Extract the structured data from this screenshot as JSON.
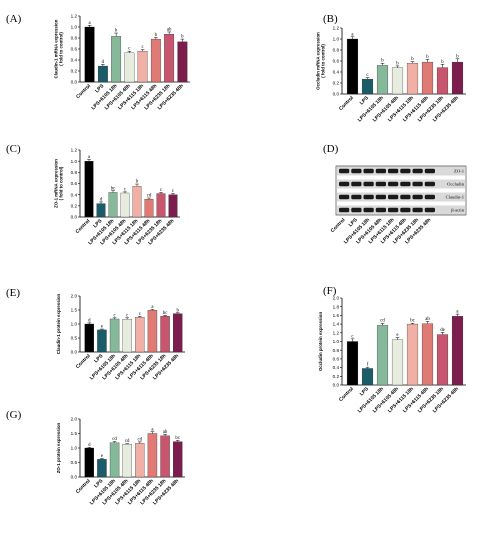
{
  "categories": [
    "Control",
    "LPS",
    "LPS+6105 18h",
    "LPS+6105 48h",
    "LPS+6115 18h",
    "LPS+6115 48h",
    "LPS+6235 18h",
    "LPS+6235 48h"
  ],
  "colors": [
    "#000000",
    "#1b5c6b",
    "#86b999",
    "#e6ecde",
    "#f1b0a6",
    "#e07a74",
    "#c8566e",
    "#7c1d4e"
  ],
  "chart_data": [
    {
      "type": "bar",
      "panel": "(A)",
      "ylabel": "Claudin-1 mRNA expression\n( fold to control)",
      "ylim": [
        0,
        1.2
      ],
      "ticks": [
        0,
        0.2,
        0.4,
        0.6,
        0.8,
        1.0,
        1.2
      ],
      "values": [
        1.0,
        0.29,
        0.83,
        0.53,
        0.56,
        0.78,
        0.87,
        0.73
      ],
      "errors": [
        0.03,
        0.03,
        0.06,
        0.03,
        0.03,
        0.03,
        0.04,
        0.05
      ],
      "letters": [
        "a",
        "d",
        "b",
        "c",
        "c",
        "b",
        "ab",
        "b"
      ]
    },
    {
      "type": "bar",
      "panel": "(B)",
      "ylabel": "Occludin mRNA expression\n( fold to control)",
      "ylim": [
        0,
        1.2
      ],
      "ticks": [
        0,
        0.2,
        0.4,
        0.6,
        0.8,
        1.0,
        1.2
      ],
      "values": [
        1.0,
        0.27,
        0.52,
        0.48,
        0.56,
        0.58,
        0.48,
        0.58
      ],
      "errors": [
        0.04,
        0.03,
        0.04,
        0.03,
        0.03,
        0.05,
        0.06,
        0.06
      ],
      "letters": [
        "a",
        "c",
        "b",
        "b",
        "b",
        "b",
        "b",
        "b"
      ]
    },
    {
      "type": "bar",
      "panel": "(C)",
      "ylabel": "ZO-1 mRNA expression\n( fold to control)",
      "ylim": [
        0,
        1.2
      ],
      "ticks": [
        0,
        0.2,
        0.4,
        0.6,
        0.8,
        1.0,
        1.2
      ],
      "values": [
        1.0,
        0.24,
        0.44,
        0.43,
        0.55,
        0.32,
        0.42,
        0.4
      ],
      "errors": [
        0.03,
        0.03,
        0.03,
        0.02,
        0.04,
        0.02,
        0.02,
        0.02
      ],
      "letters": [
        "a",
        "d",
        "bc",
        "c",
        "b",
        "cd",
        "c",
        "c"
      ]
    },
    {
      "type": "bar",
      "panel": "(E)",
      "ylabel": "Claudin-1 protein expression",
      "ylim": [
        0,
        2.0
      ],
      "ticks": [
        0,
        0.5,
        1.0,
        1.5,
        2.0
      ],
      "values": [
        1.0,
        0.79,
        1.18,
        1.17,
        1.24,
        1.49,
        1.28,
        1.37
      ],
      "errors": [
        0.04,
        0.03,
        0.04,
        0.05,
        0.03,
        0.03,
        0.03,
        0.03
      ],
      "letters": [
        "d",
        "e",
        "c",
        "c",
        "c",
        "a",
        "bc",
        "b"
      ]
    },
    {
      "type": "bar",
      "panel": "(F)",
      "ylabel": "Occludin protein expression",
      "ylim": [
        0,
        2.0
      ],
      "ticks": [
        0,
        0.2,
        0.4,
        0.6,
        0.8,
        1.0,
        1.2,
        1.4,
        1.6,
        1.8,
        2.0
      ],
      "values": [
        1.0,
        0.38,
        1.37,
        1.04,
        1.4,
        1.41,
        1.16,
        1.58
      ],
      "errors": [
        0.06,
        0.03,
        0.05,
        0.05,
        0.02,
        0.05,
        0.05,
        0.05
      ],
      "letters": [
        "c",
        "f",
        "cd",
        "e",
        "bc",
        "ab",
        "de",
        "a"
      ]
    },
    {
      "type": "bar",
      "panel": "(G)",
      "ylabel": "ZO-1 protein expression",
      "ylim": [
        0,
        2.0
      ],
      "ticks": [
        0,
        0.5,
        1.0,
        1.5,
        2.0
      ],
      "values": [
        1.0,
        0.61,
        1.18,
        1.13,
        1.16,
        1.5,
        1.42,
        1.22
      ],
      "errors": [
        0.02,
        0.03,
        0.04,
        0.02,
        0.05,
        0.06,
        0.05,
        0.04
      ],
      "letters": [
        "d",
        "e",
        "cd",
        "cd",
        "cd",
        "a",
        "ab",
        "bc"
      ]
    }
  ],
  "blot": {
    "panel": "(D)",
    "rows": [
      "ZO-1",
      "Occludin",
      "Claudin-1",
      "β-actin"
    ],
    "lanes": [
      "Control",
      "LPS",
      "LPS+6105 18h",
      "LPS+6105 48h",
      "LPS+6115 18h",
      "LPS+6115 48h",
      "LPS+6235 18h",
      "LPS+6235 48h"
    ]
  }
}
